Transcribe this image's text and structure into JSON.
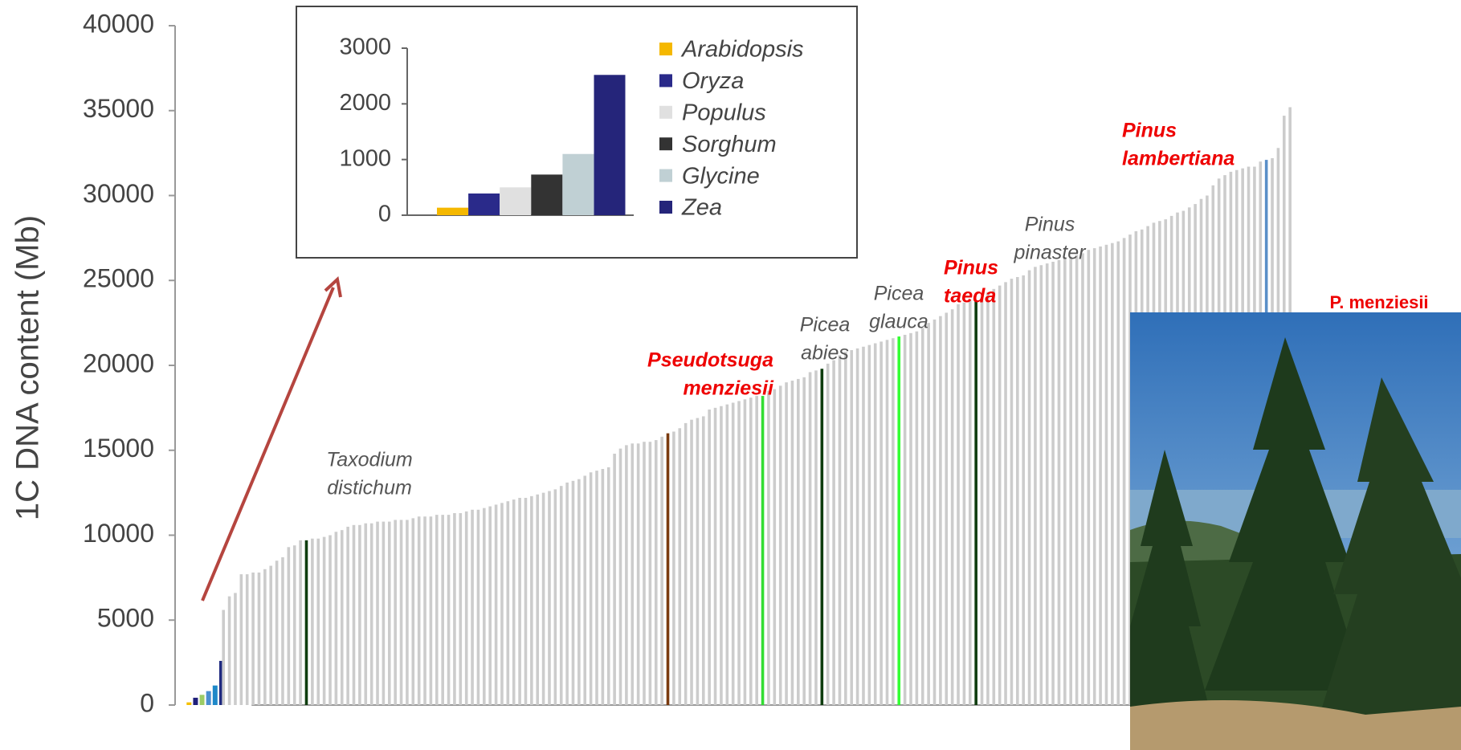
{
  "chart_data": [
    {
      "type": "bar",
      "y_label": "1C DNA content (Mb)",
      "ylim": [
        0,
        40000
      ],
      "yticks": [
        0,
        5000,
        10000,
        15000,
        20000,
        25000,
        30000,
        35000,
        40000
      ],
      "values": [
        157,
        430,
        600,
        820,
        1150,
        2600,
        5600,
        6400,
        6600,
        7700,
        7700,
        7800,
        7800,
        8000,
        8200,
        8500,
        8700,
        9300,
        9400,
        9700,
        9700,
        9800,
        9800,
        9900,
        10000,
        10200,
        10300,
        10500,
        10600,
        10600,
        10700,
        10700,
        10800,
        10800,
        10800,
        10900,
        10900,
        10900,
        11000,
        11100,
        11100,
        11100,
        11200,
        11200,
        11200,
        11300,
        11300,
        11400,
        11500,
        11500,
        11600,
        11700,
        11800,
        11900,
        12000,
        12100,
        12200,
        12200,
        12300,
        12400,
        12500,
        12600,
        12700,
        12900,
        13100,
        13200,
        13300,
        13500,
        13700,
        13800,
        13900,
        14000,
        14800,
        15100,
        15300,
        15400,
        15400,
        15500,
        15500,
        15600,
        15800,
        16000,
        16100,
        16300,
        16600,
        16800,
        16900,
        17000,
        17400,
        17500,
        17600,
        17700,
        17800,
        17900,
        18000,
        18100,
        18200,
        18200,
        18500,
        18600,
        18800,
        19000,
        19100,
        19200,
        19300,
        19600,
        19700,
        19800,
        20100,
        20300,
        20600,
        20800,
        20900,
        21000,
        21100,
        21200,
        21300,
        21400,
        21500,
        21600,
        21700,
        21800,
        21900,
        22000,
        22200,
        22500,
        22700,
        22900,
        23100,
        23300,
        23600,
        23700,
        23800,
        23800,
        24000,
        24300,
        24500,
        24700,
        24900,
        25100,
        25200,
        25300,
        25600,
        25800,
        25900,
        26000,
        26100,
        26200,
        26300,
        26400,
        26500,
        26600,
        26800,
        26900,
        27000,
        27100,
        27200,
        27300,
        27500,
        27700,
        27900,
        28000,
        28200,
        28400,
        28500,
        28600,
        28800,
        29000,
        29100,
        29300,
        29500,
        29800,
        30000,
        30600,
        31000,
        31200,
        31400,
        31500,
        31600,
        31700,
        31700,
        32000,
        32100,
        32200,
        32800,
        34700,
        35200
      ],
      "colors": [
        "#f5c000",
        "#1f1f7a",
        "#9ccc65",
        "#4a8fd0",
        "#1e88c8",
        "#1f2a80",
        "#ccc",
        "#ccc",
        "#ccc",
        "#ccc",
        "#ccc",
        "#ccc",
        "#ccc",
        "#ccc",
        "#ccc",
        "#ccc",
        "#ccc",
        "#ccc",
        "#ccc",
        "#ccc",
        "#0f3d0f",
        "#ccc",
        "#ccc",
        "#ccc",
        "#ccc",
        "#ccc",
        "#ccc",
        "#ccc",
        "#ccc",
        "#ccc",
        "#ccc",
        "#ccc",
        "#ccc",
        "#ccc",
        "#ccc",
        "#ccc",
        "#ccc",
        "#ccc",
        "#ccc",
        "#ccc",
        "#ccc",
        "#ccc",
        "#ccc",
        "#ccc",
        "#ccc",
        "#ccc",
        "#ccc",
        "#ccc",
        "#ccc",
        "#ccc",
        "#ccc",
        "#ccc",
        "#ccc",
        "#ccc",
        "#ccc",
        "#ccc",
        "#ccc",
        "#ccc",
        "#ccc",
        "#ccc",
        "#ccc",
        "#ccc",
        "#ccc",
        "#ccc",
        "#ccc",
        "#ccc",
        "#ccc",
        "#ccc",
        "#ccc",
        "#ccc",
        "#ccc",
        "#ccc",
        "#ccc",
        "#ccc",
        "#ccc",
        "#ccc",
        "#ccc",
        "#ccc",
        "#ccc",
        "#ccc",
        "#ccc",
        "#7a3b10",
        "#ccc",
        "#ccc",
        "#ccc",
        "#ccc",
        "#ccc",
        "#ccc",
        "#ccc",
        "#ccc",
        "#ccc",
        "#ccc",
        "#ccc",
        "#ccc",
        "#ccc",
        "#ccc",
        "#ccc",
        "#33dd33",
        "#ccc",
        "#ccc",
        "#ccc",
        "#ccc",
        "#ccc",
        "#ccc",
        "#ccc",
        "#ccc",
        "#ccc",
        "#0f3d0f",
        "#ccc",
        "#ccc",
        "#ccc",
        "#ccc",
        "#ccc",
        "#ccc",
        "#ccc",
        "#ccc",
        "#ccc",
        "#ccc",
        "#ccc",
        "#ccc",
        "#33ff33",
        "#ccc",
        "#ccc",
        "#ccc",
        "#ccc",
        "#ccc",
        "#ccc",
        "#ccc",
        "#ccc",
        "#ccc",
        "#ccc",
        "#ccc",
        "#ccc",
        "#0f3d0f",
        "#ccc",
        "#ccc",
        "#ccc",
        "#ccc",
        "#ccc",
        "#ccc",
        "#ccc",
        "#ccc",
        "#ccc",
        "#ccc",
        "#ccc",
        "#ccc",
        "#ccc",
        "#ccc",
        "#ccc",
        "#ccc",
        "#ccc",
        "#ccc",
        "#ccc",
        "#ccc",
        "#ccc",
        "#ccc",
        "#ccc",
        "#ccc",
        "#ccc",
        "#ccc",
        "#ccc",
        "#ccc",
        "#ccc",
        "#ccc",
        "#ccc",
        "#ccc",
        "#ccc",
        "#ccc",
        "#ccc",
        "#ccc",
        "#ccc",
        "#ccc",
        "#ccc",
        "#ccc",
        "#ccc",
        "#ccc",
        "#ccc",
        "#ccc",
        "#ccc",
        "#ccc",
        "#ccc",
        "#ccc",
        "#5a8fc8",
        "#ccc",
        "#ccc",
        "#ccc",
        "#ccc"
      ],
      "annotations": [
        {
          "text": [
            "Taxodium",
            "distichum"
          ],
          "color": "#555555"
        },
        {
          "text": [
            "Pseudotsuga",
            "menziesii"
          ],
          "color": "#ee0000"
        },
        {
          "text": [
            "Picea",
            "abies"
          ],
          "color": "#555555"
        },
        {
          "text": [
            "Picea",
            "glauca"
          ],
          "color": "#555555"
        },
        {
          "text": [
            "Pinus",
            "taeda"
          ],
          "color": "#ee0000"
        },
        {
          "text": [
            "Pinus",
            "pinaster"
          ],
          "color": "#555555"
        },
        {
          "text": [
            "Pinus",
            "lambertiana"
          ],
          "color": "#ee0000"
        }
      ],
      "photo_caption": "P. menziesii"
    },
    {
      "type": "bar",
      "categories": [
        "Arabidopsis",
        "Oryza",
        "Populus",
        "Sorghum",
        "Glycine",
        "Zea"
      ],
      "values": [
        135,
        390,
        500,
        730,
        1100,
        2520
      ],
      "colors": [
        "#f5b800",
        "#2a2a8a",
        "#e0e0e0",
        "#333333",
        "#c0d0d4",
        "#25257a"
      ],
      "ylim": [
        0,
        3000
      ],
      "yticks": [
        0,
        1000,
        2000,
        3000
      ],
      "legend": "right"
    }
  ]
}
